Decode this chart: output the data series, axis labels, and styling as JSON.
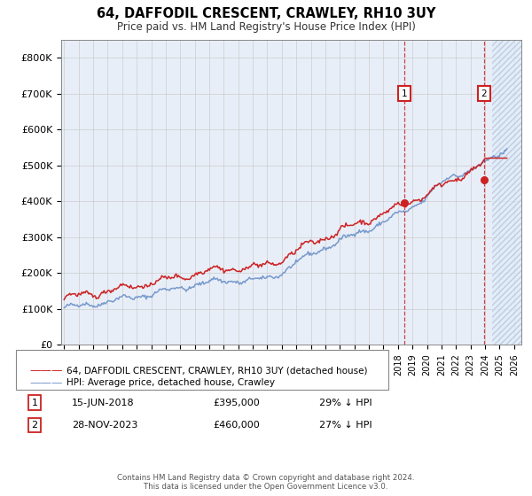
{
  "title": "64, DAFFODIL CRESCENT, CRAWLEY, RH10 3UY",
  "subtitle": "Price paid vs. HM Land Registry's House Price Index (HPI)",
  "ylim": [
    0,
    850000
  ],
  "yticks": [
    0,
    100000,
    200000,
    300000,
    400000,
    500000,
    600000,
    700000,
    800000
  ],
  "ytick_labels": [
    "£0",
    "£100K",
    "£200K",
    "£300K",
    "£400K",
    "£500K",
    "£600K",
    "£700K",
    "£800K"
  ],
  "xlim_start": 1994.8,
  "xlim_end": 2026.5,
  "hpi_color": "#7799cc",
  "price_color": "#cc2222",
  "sale1_year": 2018.45,
  "sale1_price": 395000,
  "sale2_year": 2023.91,
  "sale2_price": 460000,
  "hatch_start": 2024.5,
  "legend_property": "64, DAFFODIL CRESCENT, CRAWLEY, RH10 3UY (detached house)",
  "legend_hpi": "HPI: Average price, detached house, Crawley",
  "ann1_num": "1",
  "ann1_date": "15-JUN-2018",
  "ann1_price": "£395,000",
  "ann1_hpi": "29% ↓ HPI",
  "ann2_num": "2",
  "ann2_date": "28-NOV-2023",
  "ann2_price": "£460,000",
  "ann2_hpi": "27% ↓ HPI",
  "footer": "Contains HM Land Registry data © Crown copyright and database right 2024.\nThis data is licensed under the Open Government Licence v3.0.",
  "bg_color": "#e8eef8",
  "plot_bg": "#ffffff",
  "grid_color": "#cccccc"
}
